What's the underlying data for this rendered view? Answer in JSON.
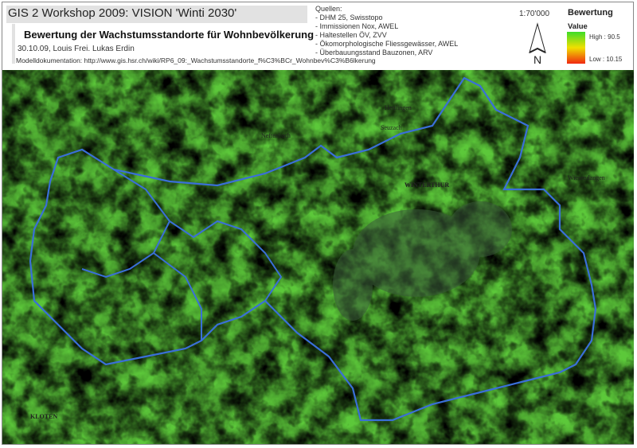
{
  "header": {
    "title": "GIS 2 Workshop 2009: VISION 'Winti 2030'",
    "subtitle": "Bewertung der Wachstumsstandorte für Wohnbevölkerung",
    "authors": "30.10.09, Louis Frei. Lukas Erdin",
    "documentation": "Modelldokumentation: http://www.gis.hsr.ch/wiki/RP6_09:_Wachstumsstandorte_f%C3%BCr_Wohnbev%C3%B6lkerung"
  },
  "sources": {
    "heading": "Quellen:",
    "items": [
      "- DHM 25, Swisstopo",
      "- Immissionen Nox, AWEL",
      "- Haltestellen ÖV, ZVV",
      "- Ökomorphologische Fliessgewässer, AWEL",
      "- Überbauungsstand Bauzonen, ARV"
    ]
  },
  "scale": "1:70'000",
  "north_arrow": {
    "icon": "north-arrow-icon",
    "label": "N"
  },
  "legend": {
    "title": "Bewertung",
    "subtitle": "Value",
    "high": "High : 90.5",
    "low": "Low : 10.15",
    "colors": {
      "high": "#3cdc28",
      "mid": "#f0e000",
      "low": "#f02810"
    }
  },
  "map": {
    "boundary_color": "#3a6fd8",
    "places": [
      "WINTERTHUR",
      "KLOTEN",
      "Seuzach",
      "Neftenbach",
      "Hettlingen",
      "Wiesendangen"
    ]
  }
}
